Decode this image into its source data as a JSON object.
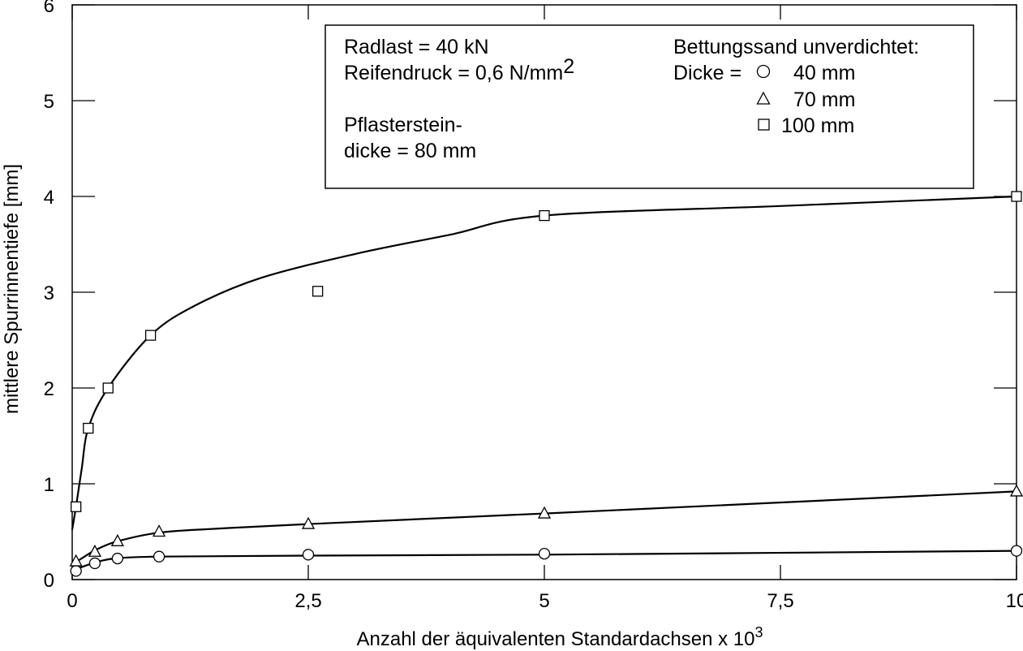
{
  "chart_data": {
    "type": "line",
    "xlabel": "Anzahl der äquivalenten Standardachsen x 10",
    "xlabel_exponent": "3",
    "ylabel": "mittlere Spurrinnentiefe [mm]",
    "xlim": [
      0,
      10
    ],
    "ylim": [
      0,
      6
    ],
    "x_ticks": [
      "0",
      "2,5",
      "5",
      "7,5",
      "10"
    ],
    "x_tick_values": [
      0,
      2.5,
      5,
      7.5,
      10
    ],
    "y_ticks": [
      "0",
      "1",
      "2",
      "3",
      "4",
      "5",
      "6"
    ],
    "y_tick_values": [
      0,
      1,
      2,
      3,
      4,
      5,
      6
    ],
    "grid": false,
    "legend_position": "top-center",
    "annotations": {
      "radlast": "Radlast = 40 kN",
      "reifendruck": "Reifendruck = 0,6 N/mm",
      "reifendruck_exponent": "2",
      "pflaster_1": "Pflasterstein-",
      "pflaster_2": "dicke = 80 mm",
      "bettung": "Bettungssand unverdichtet:",
      "dicke": "Dicke ="
    },
    "series": [
      {
        "name": "40 mm",
        "marker": "circle",
        "points": [
          [
            0.04,
            0.09
          ],
          [
            0.24,
            0.17
          ],
          [
            0.48,
            0.22
          ],
          [
            0.92,
            0.24
          ],
          [
            2.5,
            0.26
          ],
          [
            5.0,
            0.27
          ],
          [
            10.0,
            0.3
          ]
        ],
        "curve": [
          [
            0.0,
            0.09
          ],
          [
            0.1,
            0.13
          ],
          [
            0.25,
            0.18
          ],
          [
            0.45,
            0.22
          ],
          [
            0.92,
            0.24
          ],
          [
            2.5,
            0.25
          ],
          [
            5.0,
            0.26
          ],
          [
            10.0,
            0.3
          ]
        ]
      },
      {
        "name": "70 mm",
        "marker": "triangle",
        "points": [
          [
            0.04,
            0.19
          ],
          [
            0.24,
            0.29
          ],
          [
            0.48,
            0.4
          ],
          [
            0.92,
            0.5
          ],
          [
            2.5,
            0.58
          ],
          [
            5.0,
            0.69
          ],
          [
            10.0,
            0.92
          ]
        ],
        "curve": [
          [
            0.0,
            0.16
          ],
          [
            0.1,
            0.22
          ],
          [
            0.25,
            0.31
          ],
          [
            0.48,
            0.4
          ],
          [
            0.92,
            0.49
          ],
          [
            1.5,
            0.53
          ],
          [
            2.5,
            0.58
          ],
          [
            5.0,
            0.69
          ],
          [
            10.0,
            0.92
          ]
        ]
      },
      {
        "name": "100 mm",
        "marker": "square",
        "points": [
          [
            0.04,
            0.76
          ],
          [
            0.17,
            1.58
          ],
          [
            0.38,
            2.0
          ],
          [
            0.83,
            2.55
          ],
          [
            2.6,
            3.01
          ],
          [
            5.0,
            3.8
          ],
          [
            10.0,
            4.0
          ]
        ],
        "curve": [
          [
            0.0,
            0.52
          ],
          [
            0.04,
            0.76
          ],
          [
            0.1,
            1.15
          ],
          [
            0.17,
            1.58
          ],
          [
            0.38,
            2.0
          ],
          [
            0.83,
            2.55
          ],
          [
            1.3,
            2.86
          ],
          [
            2.0,
            3.15
          ],
          [
            3.0,
            3.4
          ],
          [
            4.0,
            3.6
          ],
          [
            5.0,
            3.8
          ],
          [
            7.5,
            3.9
          ],
          [
            10.0,
            4.0
          ]
        ]
      }
    ]
  }
}
